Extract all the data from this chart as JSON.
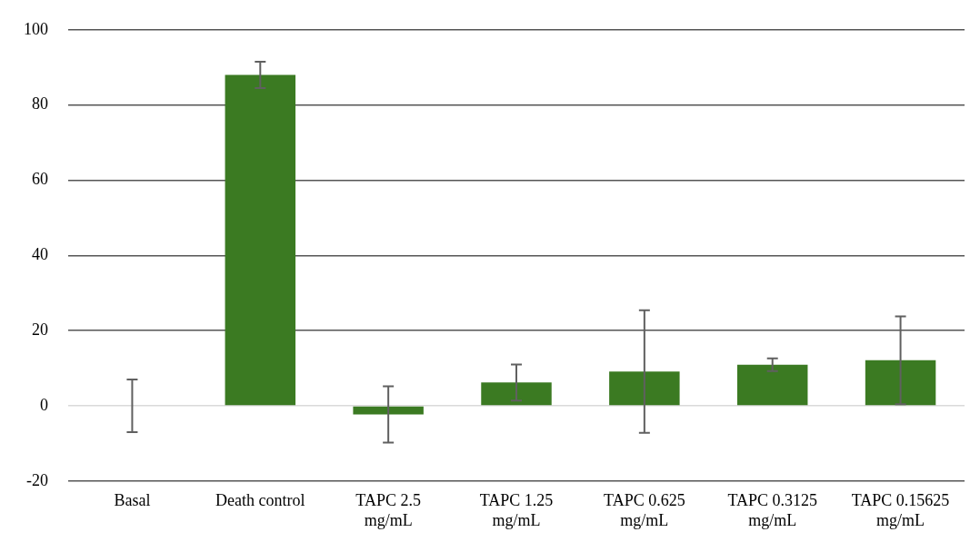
{
  "chart_data": {
    "type": "bar",
    "categories": [
      "Basal",
      "Death control",
      "TAPC 2.5 mg/mL",
      "TAPC 1.25 mg/mL",
      "TAPC 0.625 mg/mL",
      "TAPC 0.3125 mg/mL",
      "TAPC 0.15625 mg/mL"
    ],
    "values": [
      0,
      88,
      -2.3,
      6.2,
      9.1,
      10.9,
      12.1
    ],
    "errors": [
      7,
      3.5,
      7.5,
      4.8,
      16.3,
      1.7,
      11.7
    ],
    "color": "#3b7a22",
    "ylim": [
      -20,
      100
    ],
    "yticks": [
      -20,
      0,
      20,
      40,
      60,
      80,
      100
    ],
    "grid": "y",
    "legend": false
  }
}
